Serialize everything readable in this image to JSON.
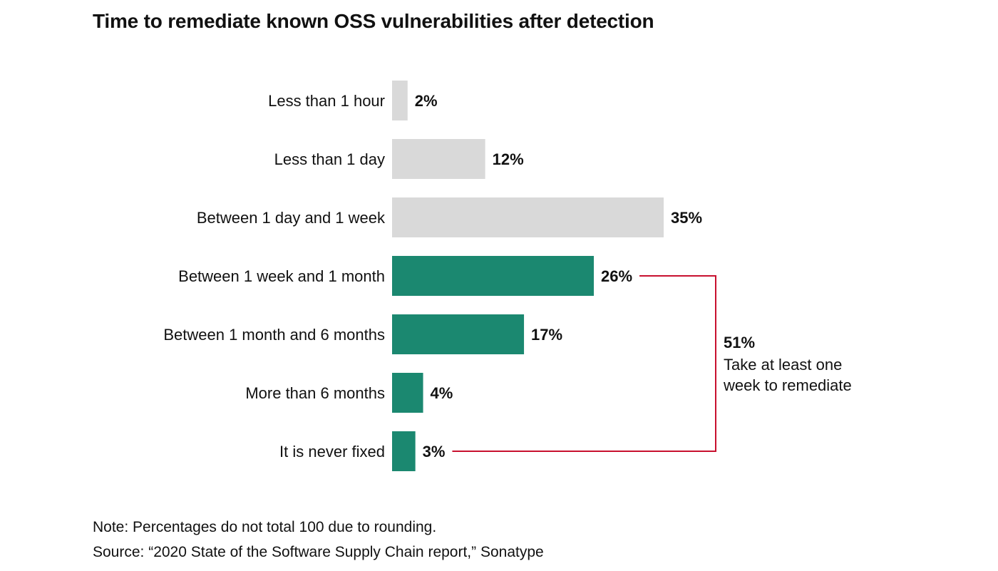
{
  "chart_data": {
    "type": "bar",
    "orientation": "horizontal",
    "title": "Time to remediate known OSS vulnerabilities after detection",
    "categories": [
      "Less than 1 hour",
      "Less than 1 day",
      "Between 1 day and 1 week",
      "Between 1 week and 1 month",
      "Between 1 month and 6 months",
      "More than 6 months",
      "It is never fixed"
    ],
    "values": [
      2,
      12,
      35,
      26,
      17,
      4,
      3
    ],
    "value_labels": [
      "2%",
      "12%",
      "35%",
      "26%",
      "17%",
      "4%",
      "3%"
    ],
    "bar_colors": [
      "#d9d9d9",
      "#d9d9d9",
      "#d9d9d9",
      "#1b8870",
      "#1b8870",
      "#1b8870",
      "#1b8870"
    ],
    "xlim": [
      0,
      35
    ],
    "grid": false,
    "callout": {
      "value": "51%",
      "text_lines": [
        "Take at least one",
        "week to remediate"
      ],
      "from_category": "Between 1 week and 1 month",
      "to_category": "It is never fixed",
      "line_color": "#c8102e"
    }
  },
  "footer": {
    "note": "Note: Percentages do not total 100 due to rounding.",
    "source": "Source: “2020 State of the Software Supply Chain report,” Sonatype"
  }
}
